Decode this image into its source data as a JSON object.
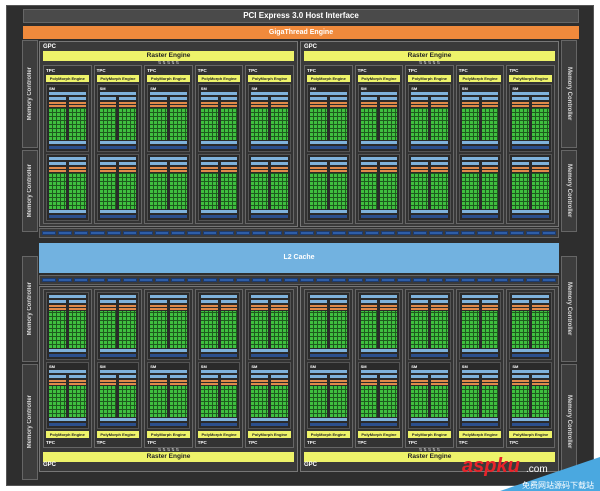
{
  "header": {
    "pci": "PCI Express 3.0 Host Interface",
    "gigathread": "GigaThread Engine"
  },
  "memory_controller": "Memory Controller",
  "l2": "L2 Cache",
  "gpc": {
    "label": "GPC",
    "raster": "Raster Engine",
    "tpc_label": "TPC",
    "polymorph": "PolyMorph Engine",
    "sm_label": "SM",
    "tpc_count": 5,
    "sms_per_tpc": 2
  },
  "colors": {
    "frame": "#2e2e2e",
    "gigathread": "#f08a3c",
    "engine": "#eef36a",
    "cores": "#3fbf3f",
    "l2": "#72b2e0"
  },
  "watermark": {
    "brand": "aspku",
    "domain": ".com",
    "tagline": "免费网站源码下载站"
  }
}
